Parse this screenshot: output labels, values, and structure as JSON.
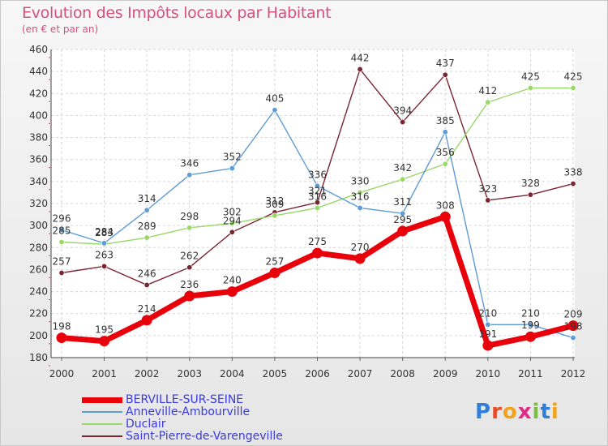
{
  "title": "Evolution des Impôts locaux par Habitant",
  "subtitle": "(en € et par an)",
  "logo": [
    "P",
    "r",
    "o",
    "x",
    "i",
    "t",
    "i"
  ],
  "chart_data": {
    "type": "line",
    "xlabel": "",
    "ylabel": "",
    "ylim": [
      180,
      460
    ],
    "ytick_step": 20,
    "grid": true,
    "categories": [
      "2000",
      "2001",
      "2002",
      "2003",
      "2004",
      "2005",
      "2006",
      "2007",
      "2008",
      "2009",
      "2010",
      "2011",
      "2012"
    ],
    "series": [
      {
        "name": "BERVILLE-SUR-SEINE",
        "color": "#e8000b",
        "values": [
          198,
          195,
          214,
          236,
          240,
          257,
          275,
          270,
          295,
          308,
          191,
          199,
          209
        ]
      },
      {
        "name": "Anneville-Ambourville",
        "color": "#5f9bd4",
        "values": [
          296,
          284,
          314,
          346,
          352,
          405,
          336,
          316,
          311,
          385,
          210,
          210,
          198
        ]
      },
      {
        "name": "Duclair",
        "color": "#97d866",
        "values": [
          285,
          283,
          289,
          298,
          302,
          309,
          316,
          330,
          342,
          356,
          412,
          425,
          425
        ]
      },
      {
        "name": "Saint-Pierre-de-Varengeville",
        "color": "#7a2530",
        "values": [
          257,
          263,
          246,
          262,
          294,
          312,
          321,
          442,
          394,
          437,
          323,
          328,
          338
        ]
      }
    ]
  }
}
